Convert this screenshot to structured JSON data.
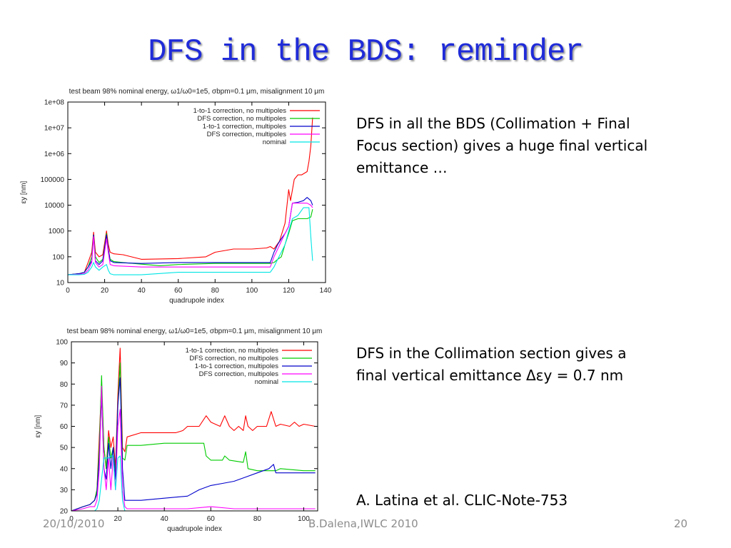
{
  "slide": {
    "title": "DFS in the BDS: reminder",
    "paragraphs": [
      {
        "lines": [
          "DFS in all the BDS (Collimation + Final",
          "Focus section)  gives a huge final vertical",
          "emittance …"
        ]
      },
      {
        "lines": [
          "DFS in the Collimation section  gives a",
          "final vertical emittance  Δεy = 0.7 nm"
        ]
      },
      {
        "lines": [
          "A. Latina et al. CLIC-Note-753"
        ]
      }
    ],
    "footer": {
      "date": "20/10/2010",
      "author": "B.Dalena,IWLC 2010",
      "page": "20"
    }
  },
  "chart_data": [
    {
      "type": "line",
      "title": "test beam 98% nominal energy, ω1/ω0=1e5, σbpm=0.1 μm, misalignment 10 μm",
      "xlabel": "quadrupole index",
      "ylabel": "εy [nm]",
      "xlim": [
        0,
        140
      ],
      "ylim": [
        10,
        100000000
      ],
      "yscale": "log",
      "xticks": [
        0,
        20,
        40,
        60,
        80,
        100,
        120,
        140
      ],
      "yticks": [
        10,
        100,
        1000,
        10000,
        100000,
        1000000,
        10000000,
        100000000
      ],
      "ytick_labels": [
        "10",
        "100",
        "1000",
        "10000",
        "100000",
        "1e+06",
        "1e+07",
        "1e+08"
      ],
      "grid": false,
      "legend_position": "top-right",
      "series": [
        {
          "name": "1-to-1 correction, no multipoles",
          "color": "#ff0000",
          "x": [
            0,
            6,
            9,
            11,
            13,
            14,
            15,
            17,
            19,
            21,
            22,
            23,
            25,
            30,
            40,
            60,
            75,
            80,
            90,
            100,
            108,
            110,
            112,
            115,
            118,
            120,
            121,
            123,
            125,
            127,
            130,
            131,
            132,
            133
          ],
          "y": [
            20,
            22,
            25,
            60,
            150,
            900,
            150,
            100,
            120,
            1000,
            300,
            150,
            130,
            120,
            80,
            85,
            100,
            150,
            200,
            200,
            220,
            250,
            200,
            400,
            2000,
            40000,
            15000,
            100000,
            150000,
            150000,
            200000,
            500000,
            2000000,
            25000000
          ]
        },
        {
          "name": "DFS correction, no multipoles",
          "color": "#00cc00",
          "x": [
            0,
            6,
            9,
            11,
            13,
            14,
            15,
            17,
            19,
            21,
            22,
            23,
            25,
            30,
            50,
            60,
            80,
            100,
            110,
            112,
            114,
            116,
            118,
            120,
            122,
            125,
            130,
            132,
            133
          ],
          "y": [
            20,
            22,
            25,
            40,
            100,
            700,
            100,
            60,
            80,
            800,
            200,
            80,
            65,
            60,
            45,
            50,
            55,
            55,
            55,
            60,
            80,
            100,
            300,
            800,
            2500,
            3000,
            3000,
            3500,
            7000
          ]
        },
        {
          "name": "1-to-1 correction, multipoles",
          "color": "#0000cc",
          "x": [
            0,
            6,
            9,
            11,
            13,
            14,
            15,
            17,
            19,
            21,
            22,
            23,
            25,
            40,
            60,
            80,
            100,
            110,
            112,
            114,
            116,
            118,
            120,
            122,
            125,
            128,
            130,
            132,
            133
          ],
          "y": [
            20,
            22,
            25,
            40,
            70,
            700,
            70,
            50,
            70,
            700,
            200,
            70,
            60,
            55,
            60,
            60,
            60,
            60,
            150,
            300,
            500,
            800,
            1500,
            12000,
            13000,
            15000,
            20000,
            15000,
            10000
          ]
        },
        {
          "name": "DFS correction, multipoles",
          "color": "#ff00ff",
          "x": [
            0,
            6,
            9,
            11,
            13,
            14,
            15,
            17,
            19,
            21,
            22,
            23,
            25,
            40,
            60,
            80,
            100,
            110,
            112,
            114,
            116,
            118,
            120,
            122,
            125,
            130,
            132,
            133
          ],
          "y": [
            20,
            21,
            22,
            30,
            60,
            600,
            60,
            40,
            50,
            500,
            150,
            50,
            45,
            40,
            40,
            40,
            40,
            40,
            100,
            200,
            400,
            800,
            1500,
            12000,
            12000,
            12000,
            10000,
            8000
          ]
        },
        {
          "name": "nominal",
          "color": "#00e5e5",
          "x": [
            0,
            6,
            9,
            11,
            13,
            14,
            15,
            17,
            19,
            21,
            22,
            23,
            25,
            40,
            60,
            80,
            100,
            110,
            112,
            114,
            116,
            118,
            120,
            122,
            125,
            128,
            131,
            132,
            133
          ],
          "y": [
            20,
            20,
            21,
            25,
            40,
            60,
            40,
            30,
            40,
            50,
            30,
            22,
            20,
            20,
            25,
            25,
            25,
            25,
            40,
            80,
            150,
            300,
            1000,
            3000,
            4000,
            8000,
            8000,
            600,
            70
          ]
        }
      ]
    },
    {
      "type": "line",
      "title": "test beam 98% nominal energy, ω1/ω0=1e5, σbpm=0.1 μm, misalignment 10 μm",
      "xlabel": "quadrupole index",
      "ylabel": "εy [nm]",
      "xlim": [
        0,
        106
      ],
      "ylim": [
        20,
        100
      ],
      "xticks": [
        0,
        20,
        40,
        60,
        80,
        100
      ],
      "yticks": [
        20,
        30,
        40,
        50,
        60,
        70,
        80,
        90,
        100
      ],
      "grid": false,
      "legend_position": "top-right",
      "series": [
        {
          "name": "1-to-1 correction, no multipoles",
          "color": "#ff0000",
          "x": [
            0,
            5,
            8,
            10,
            11,
            12,
            13,
            14,
            15,
            16,
            17,
            18,
            19,
            20,
            21,
            22,
            23,
            24,
            30,
            40,
            45,
            48,
            50,
            55,
            58,
            60,
            64,
            66,
            68,
            70,
            72,
            74,
            75,
            76,
            78,
            80,
            84,
            86,
            88,
            90,
            94,
            96,
            98,
            100,
            105
          ],
          "y": [
            20,
            22,
            23,
            25,
            30,
            55,
            80,
            50,
            40,
            58,
            50,
            55,
            40,
            75,
            97,
            50,
            48,
            55,
            57,
            57,
            57,
            58,
            60,
            60,
            65,
            62,
            60,
            65,
            60,
            58,
            60,
            58,
            65,
            60,
            58,
            60,
            60,
            67,
            60,
            61,
            60,
            62,
            60,
            61,
            60
          ]
        },
        {
          "name": "DFS correction, no multipoles",
          "color": "#00cc00",
          "x": [
            0,
            5,
            8,
            10,
            11,
            12,
            13,
            14,
            15,
            16,
            17,
            18,
            19,
            20,
            21,
            22,
            23,
            24,
            30,
            40,
            50,
            55,
            57,
            58,
            60,
            65,
            66,
            68,
            74,
            75,
            76,
            80,
            88,
            90,
            100,
            105
          ],
          "y": [
            20,
            22,
            23,
            25,
            30,
            50,
            84,
            50,
            40,
            55,
            45,
            50,
            38,
            70,
            90,
            45,
            44,
            51,
            51,
            52,
            52,
            52,
            52,
            46,
            44,
            44,
            46,
            44,
            43,
            48,
            40,
            39,
            39,
            40,
            39,
            39
          ]
        },
        {
          "name": "1-to-1 correction, multipoles",
          "color": "#0000cc",
          "x": [
            0,
            5,
            8,
            10,
            11,
            12,
            13,
            14,
            15,
            16,
            17,
            18,
            19,
            20,
            21,
            22,
            23,
            24,
            30,
            40,
            50,
            55,
            60,
            65,
            70,
            75,
            80,
            85,
            87,
            88,
            90,
            95,
            100,
            105
          ],
          "y": [
            20,
            22,
            23,
            25,
            28,
            45,
            75,
            40,
            35,
            52,
            40,
            50,
            35,
            70,
            83,
            40,
            25,
            25,
            25,
            26,
            27,
            30,
            32,
            33,
            34,
            36,
            38,
            40,
            42,
            38,
            38,
            38,
            38,
            38
          ]
        },
        {
          "name": "DFS correction, multipoles",
          "color": "#ff00ff",
          "x": [
            0,
            5,
            8,
            10,
            11,
            12,
            13,
            14,
            15,
            16,
            17,
            18,
            19,
            20,
            21,
            22,
            23,
            24,
            30,
            40,
            50,
            60,
            70,
            80,
            90,
            100,
            105
          ],
          "y": [
            20,
            21,
            22,
            22,
            25,
            40,
            79,
            40,
            30,
            45,
            30,
            45,
            30,
            60,
            68,
            30,
            22,
            21,
            21,
            21,
            21,
            22,
            21,
            21,
            21,
            21,
            21
          ]
        },
        {
          "name": "nominal",
          "color": "#00e5e5",
          "x": [
            0,
            8,
            10,
            11,
            12,
            13,
            14,
            15,
            16,
            17,
            18,
            19,
            20,
            21,
            22,
            23,
            24,
            40,
            60,
            80,
            105
          ],
          "y": [
            20,
            20,
            20,
            21,
            25,
            35,
            45,
            45,
            45,
            46,
            46,
            30,
            45,
            46,
            25,
            20,
            20,
            20,
            20,
            20,
            20
          ]
        }
      ]
    }
  ]
}
